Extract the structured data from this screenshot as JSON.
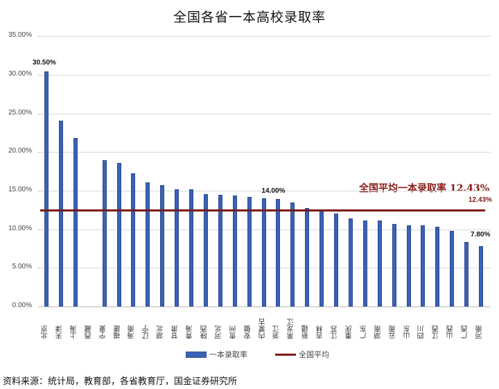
{
  "title": "全国各省一本高校录取率",
  "source": "资料来源：统计局，教育部，各省教育厅，国金证券研究所",
  "avg_annotation": "全国平均一本录取率 12.43%",
  "legend": [
    {
      "label": "一本录取率",
      "type": "bar",
      "color": "#3a62b5"
    },
    {
      "label": "全国平均",
      "type": "line",
      "color": "#7a1a1a"
    }
  ],
  "y_ticks": [
    "35.00%",
    "30.00%",
    "25.00%",
    "20.00%",
    "15.00%",
    "10.00%",
    "5.00%",
    "0.00%"
  ],
  "data_labels": {
    "beijing": "30.50%",
    "neimenggu": "14.00%",
    "henan": "7.80%",
    "average": "12.43%"
  },
  "colors": {
    "bar": "#3a62b5",
    "average": "#7a1a1a",
    "annotation": "#8b1a1a"
  },
  "chart_data": {
    "type": "bar",
    "title": "全国各省一本高校录取率",
    "xlabel": "",
    "ylabel": "",
    "ylim": [
      0,
      35
    ],
    "y_tick_format": "percent",
    "grid": true,
    "legend_position": "bottom",
    "categories": [
      "北京",
      "天津",
      "上海",
      "西藏",
      "宁夏",
      "福建",
      "海南",
      "辽宁",
      "湖北",
      "甘肃",
      "青海",
      "陕西",
      "河北",
      "贵州",
      "安徽",
      "内蒙古",
      "浙江",
      "黑龙江",
      "新疆",
      "吉林",
      "江苏",
      "重庆",
      "广东",
      "湖南",
      "云南",
      "山东",
      "四川",
      "江西",
      "山西",
      "广西",
      "河南"
    ],
    "series": [
      {
        "name": "一本录取率",
        "type": "bar",
        "values": [
          30.5,
          24.1,
          21.8,
          0,
          19.0,
          18.6,
          17.25,
          16.1,
          15.75,
          15.2,
          15.15,
          14.6,
          14.5,
          14.4,
          14.2,
          14.0,
          13.9,
          13.45,
          12.8,
          12.5,
          12.0,
          11.4,
          11.1,
          11.1,
          10.7,
          10.5,
          10.5,
          10.3,
          9.8,
          8.4,
          7.8
        ]
      },
      {
        "name": "全国平均",
        "type": "line",
        "value": 12.43
      }
    ],
    "annotations": [
      {
        "text": "30.50%",
        "category": "北京"
      },
      {
        "text": "14.00%",
        "category": "内蒙古"
      },
      {
        "text": "7.80%",
        "category": "河南"
      },
      {
        "text": "12.43%",
        "target": "全国平均"
      },
      {
        "text": "全国平均一本录取率 12.43%"
      }
    ]
  }
}
